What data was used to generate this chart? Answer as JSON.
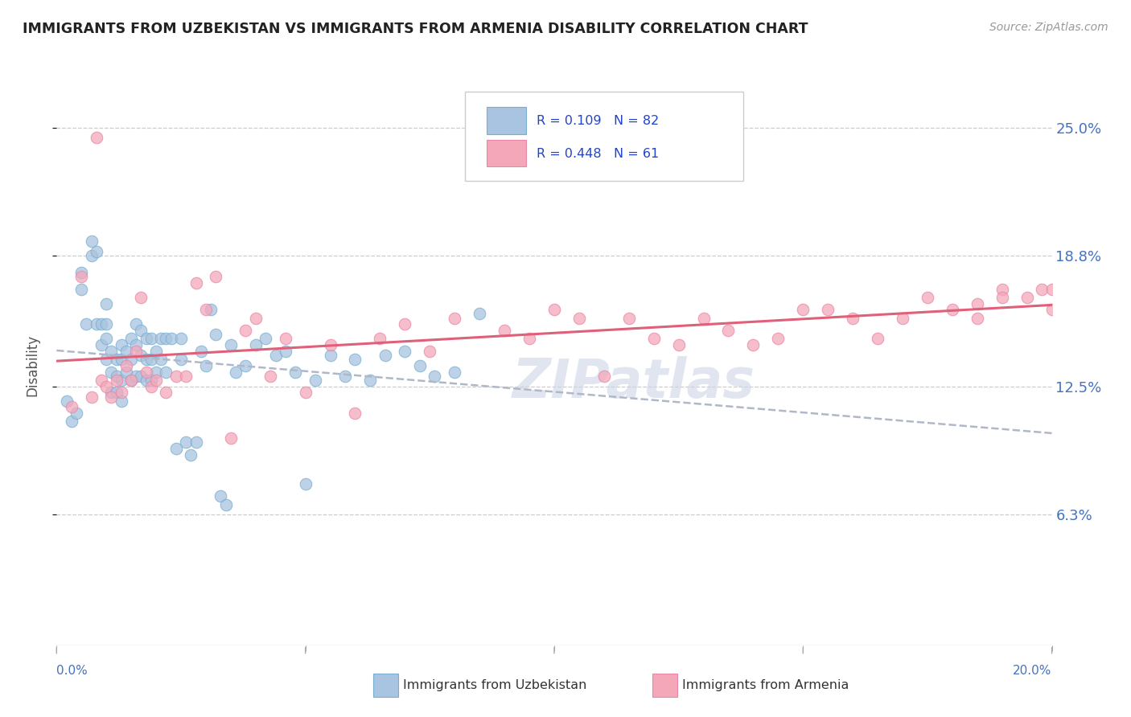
{
  "title": "IMMIGRANTS FROM UZBEKISTAN VS IMMIGRANTS FROM ARMENIA DISABILITY CORRELATION CHART",
  "source": "Source: ZipAtlas.com",
  "ylabel": "Disability",
  "ytick_labels": [
    "6.3%",
    "12.5%",
    "18.8%",
    "25.0%"
  ],
  "ytick_values": [
    0.063,
    0.125,
    0.188,
    0.25
  ],
  "xrange": [
    0.0,
    0.2
  ],
  "yrange": [
    0.0,
    0.27
  ],
  "legend_R1": "R = 0.109",
  "legend_N1": "N = 82",
  "legend_R2": "R = 0.448",
  "legend_N2": "N = 61",
  "color_uzbekistan": "#a8c4e0",
  "color_armenia": "#f4a7b9",
  "trendline_uzbekistan_color": "#b0b8c8",
  "trendline_armenia_color": "#e0607a",
  "watermark": "ZIPatlas",
  "uzbekistan_x": [
    0.002,
    0.003,
    0.004,
    0.005,
    0.005,
    0.006,
    0.007,
    0.007,
    0.008,
    0.008,
    0.009,
    0.009,
    0.01,
    0.01,
    0.01,
    0.01,
    0.011,
    0.011,
    0.011,
    0.012,
    0.012,
    0.012,
    0.013,
    0.013,
    0.013,
    0.013,
    0.014,
    0.014,
    0.015,
    0.015,
    0.015,
    0.016,
    0.016,
    0.016,
    0.017,
    0.017,
    0.017,
    0.018,
    0.018,
    0.018,
    0.019,
    0.019,
    0.019,
    0.02,
    0.02,
    0.021,
    0.021,
    0.022,
    0.022,
    0.023,
    0.024,
    0.025,
    0.025,
    0.026,
    0.027,
    0.028,
    0.029,
    0.03,
    0.031,
    0.032,
    0.033,
    0.034,
    0.035,
    0.036,
    0.038,
    0.04,
    0.042,
    0.044,
    0.046,
    0.048,
    0.05,
    0.052,
    0.055,
    0.058,
    0.06,
    0.063,
    0.066,
    0.07,
    0.073,
    0.076,
    0.08,
    0.085
  ],
  "uzbekistan_y": [
    0.118,
    0.108,
    0.112,
    0.172,
    0.18,
    0.155,
    0.195,
    0.188,
    0.155,
    0.19,
    0.155,
    0.145,
    0.165,
    0.155,
    0.148,
    0.138,
    0.142,
    0.132,
    0.122,
    0.138,
    0.13,
    0.122,
    0.145,
    0.138,
    0.128,
    0.118,
    0.142,
    0.132,
    0.148,
    0.138,
    0.128,
    0.155,
    0.145,
    0.13,
    0.152,
    0.14,
    0.13,
    0.148,
    0.138,
    0.128,
    0.148,
    0.138,
    0.128,
    0.142,
    0.132,
    0.148,
    0.138,
    0.148,
    0.132,
    0.148,
    0.095,
    0.148,
    0.138,
    0.098,
    0.092,
    0.098,
    0.142,
    0.135,
    0.162,
    0.15,
    0.072,
    0.068,
    0.145,
    0.132,
    0.135,
    0.145,
    0.148,
    0.14,
    0.142,
    0.132,
    0.078,
    0.128,
    0.14,
    0.13,
    0.138,
    0.128,
    0.14,
    0.142,
    0.135,
    0.13,
    0.132,
    0.16
  ],
  "armenia_x": [
    0.003,
    0.005,
    0.007,
    0.008,
    0.009,
    0.01,
    0.011,
    0.012,
    0.013,
    0.014,
    0.015,
    0.016,
    0.017,
    0.018,
    0.019,
    0.02,
    0.022,
    0.024,
    0.026,
    0.028,
    0.03,
    0.032,
    0.035,
    0.038,
    0.04,
    0.043,
    0.046,
    0.05,
    0.055,
    0.06,
    0.065,
    0.07,
    0.075,
    0.08,
    0.09,
    0.095,
    0.1,
    0.105,
    0.11,
    0.115,
    0.12,
    0.125,
    0.13,
    0.135,
    0.14,
    0.145,
    0.15,
    0.155,
    0.16,
    0.165,
    0.17,
    0.175,
    0.18,
    0.185,
    0.19,
    0.195,
    0.198,
    0.2,
    0.2,
    0.19,
    0.185
  ],
  "armenia_y": [
    0.115,
    0.178,
    0.12,
    0.245,
    0.128,
    0.125,
    0.12,
    0.128,
    0.122,
    0.135,
    0.128,
    0.142,
    0.168,
    0.132,
    0.125,
    0.128,
    0.122,
    0.13,
    0.13,
    0.175,
    0.162,
    0.178,
    0.1,
    0.152,
    0.158,
    0.13,
    0.148,
    0.122,
    0.145,
    0.112,
    0.148,
    0.155,
    0.142,
    0.158,
    0.152,
    0.148,
    0.162,
    0.158,
    0.13,
    0.158,
    0.148,
    0.145,
    0.158,
    0.152,
    0.145,
    0.148,
    0.162,
    0.162,
    0.158,
    0.148,
    0.158,
    0.168,
    0.162,
    0.158,
    0.172,
    0.168,
    0.172,
    0.162,
    0.172,
    0.168,
    0.165
  ]
}
